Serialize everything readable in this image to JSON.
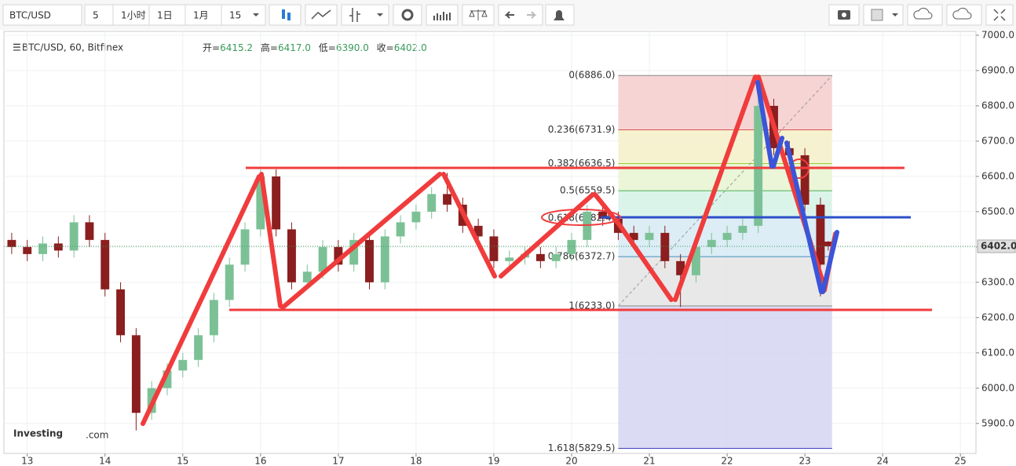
{
  "header": {
    "symbol": "BTC/USD",
    "buttons": [
      "5",
      "1小时",
      "1日",
      "1月",
      "15"
    ],
    "legend": "BTC/USD, 60, Bitfinex",
    "ohlc": [
      {
        "key": "开=",
        "val": "6415.2"
      },
      {
        "key": "高=",
        "val": "6417.0"
      },
      {
        "key": "低=",
        "val": "6390.0"
      },
      {
        "key": "收=",
        "val": "6402.0"
      }
    ],
    "watermark": "Investing",
    "watermark_suffix": ".com"
  },
  "chart_data": {
    "type": "candlestick",
    "x": [
      12.8,
      13.0,
      13.2,
      13.4,
      13.6,
      13.8,
      14.0,
      14.2,
      14.4,
      14.6,
      14.8,
      15.0,
      15.2,
      15.4,
      15.6,
      15.8,
      16.0,
      16.2,
      16.4,
      16.6,
      16.8,
      17.0,
      17.2,
      17.4,
      17.6,
      17.8,
      18.0,
      18.2,
      18.4,
      18.6,
      18.8,
      19.0,
      19.2,
      19.4,
      19.6,
      19.8,
      20.0,
      20.2,
      20.4,
      20.6,
      20.8,
      21.0,
      21.2,
      21.4,
      21.6,
      21.8,
      22.0,
      22.2,
      22.4,
      22.6,
      22.8,
      23.0,
      23.2,
      23.3
    ],
    "open": [
      6420,
      6400,
      6380,
      6410,
      6390,
      6470,
      6420,
      6280,
      6150,
      5930,
      6000,
      6050,
      6080,
      6150,
      6250,
      6350,
      6450,
      6600,
      6450,
      6300,
      6330,
      6400,
      6350,
      6420,
      6300,
      6430,
      6470,
      6500,
      6550,
      6520,
      6460,
      6430,
      6360,
      6370,
      6380,
      6360,
      6380,
      6420,
      6500,
      6480,
      6440,
      6420,
      6440,
      6360,
      6320,
      6400,
      6420,
      6440,
      6460,
      6800,
      6680,
      6660,
      6520,
      6415.2
    ],
    "high": [
      6440,
      6420,
      6430,
      6430,
      6490,
      6490,
      6440,
      6300,
      6170,
      6020,
      6070,
      6100,
      6170,
      6270,
      6370,
      6470,
      6620,
      6620,
      6470,
      6350,
      6420,
      6420,
      6440,
      6440,
      6450,
      6490,
      6520,
      6570,
      6610,
      6540,
      6480,
      6450,
      6390,
      6400,
      6400,
      6400,
      6440,
      6520,
      6520,
      6500,
      6460,
      6460,
      6460,
      6380,
      6420,
      6440,
      6460,
      6480,
      6886,
      6820,
      6700,
      6680,
      6540,
      6417
    ],
    "low": [
      6380,
      6360,
      6360,
      6370,
      6370,
      6400,
      6260,
      6130,
      5880,
      5910,
      5980,
      6030,
      6060,
      6130,
      6230,
      6330,
      6430,
      6430,
      6280,
      6280,
      6310,
      6330,
      6330,
      6280,
      6280,
      6410,
      6450,
      6480,
      6500,
      6440,
      6410,
      6340,
      6340,
      6350,
      6340,
      6340,
      6360,
      6400,
      6460,
      6420,
      6400,
      6400,
      6340,
      6230,
      6300,
      6380,
      6400,
      6420,
      6440,
      6660,
      6640,
      6500,
      6260,
      6390
    ],
    "close": [
      6400,
      6380,
      6410,
      6390,
      6470,
      6420,
      6280,
      6150,
      5930,
      6000,
      6050,
      6080,
      6150,
      6250,
      6350,
      6450,
      6600,
      6450,
      6300,
      6330,
      6400,
      6350,
      6420,
      6300,
      6430,
      6470,
      6500,
      6550,
      6520,
      6460,
      6430,
      6360,
      6370,
      6380,
      6360,
      6380,
      6420,
      6500,
      6480,
      6440,
      6420,
      6440,
      6360,
      6320,
      6400,
      6420,
      6440,
      6460,
      6800,
      6680,
      6660,
      6520,
      6350,
      6402
    ],
    "up_color": "#7cc196",
    "down_color": "#8b1e1e",
    "xlim": [
      12.7,
      25.2
    ],
    "xticks": [
      13,
      14,
      15,
      16,
      17,
      18,
      19,
      20,
      21,
      22,
      23,
      24,
      25
    ],
    "ylim": [
      5815,
      7011
    ],
    "yticks": [
      {
        "value": 5900,
        "label": "5900.0"
      },
      {
        "value": 6000,
        "label": "6000.0"
      },
      {
        "value": 6100,
        "label": "6100.0"
      },
      {
        "value": 6200,
        "label": "6200.0"
      },
      {
        "value": 6300,
        "label": "6300.0"
      },
      {
        "value": 6400,
        "label": "6400.0"
      },
      {
        "value": 6500,
        "label": "6500.0"
      },
      {
        "value": 6600,
        "label": "6600.0"
      },
      {
        "value": 6700,
        "label": "6700.0"
      },
      {
        "value": 6800,
        "label": "6800.0"
      },
      {
        "value": 6900,
        "label": "6900.0"
      },
      {
        "value": 7000,
        "label": "7000.0"
      }
    ],
    "grid": true,
    "last_price": {
      "value": 6402,
      "label": "6402.0"
    },
    "fib": {
      "x": [
        20.6,
        23.35
      ],
      "levels": [
        {
          "value": 6886,
          "label": "0(6886.0)",
          "color": "#888888",
          "fill": "#f4cccc"
        },
        {
          "value": 6731.9,
          "label": "0.236(6731.9)",
          "color": "#d9534f",
          "fill": "#f5f0c8"
        },
        {
          "value": 6636.5,
          "label": "0.382(6636.5)",
          "color": "#9acd32",
          "fill": "#e6f5d0"
        },
        {
          "value": 6559.5,
          "label": "0.5(6559.5)",
          "color": "#4caf50",
          "fill": "#d3f2e6"
        },
        {
          "value": 6482.4,
          "label": "0.618(6482.4)",
          "color": "#26a69a",
          "fill": "#d6eaf5"
        },
        {
          "value": 6372.7,
          "label": "0.786(6372.7)",
          "color": "#3f8fc0",
          "fill": "#e4e4e4"
        },
        {
          "value": 6233,
          "label": "1(6233.0)",
          "color": "#888888",
          "fill": "#d5d5f2"
        },
        {
          "value": 5829.5,
          "label": "1.618(5829.5)",
          "color": "#3f3fbf",
          "fill": "none"
        }
      ]
    }
  }
}
